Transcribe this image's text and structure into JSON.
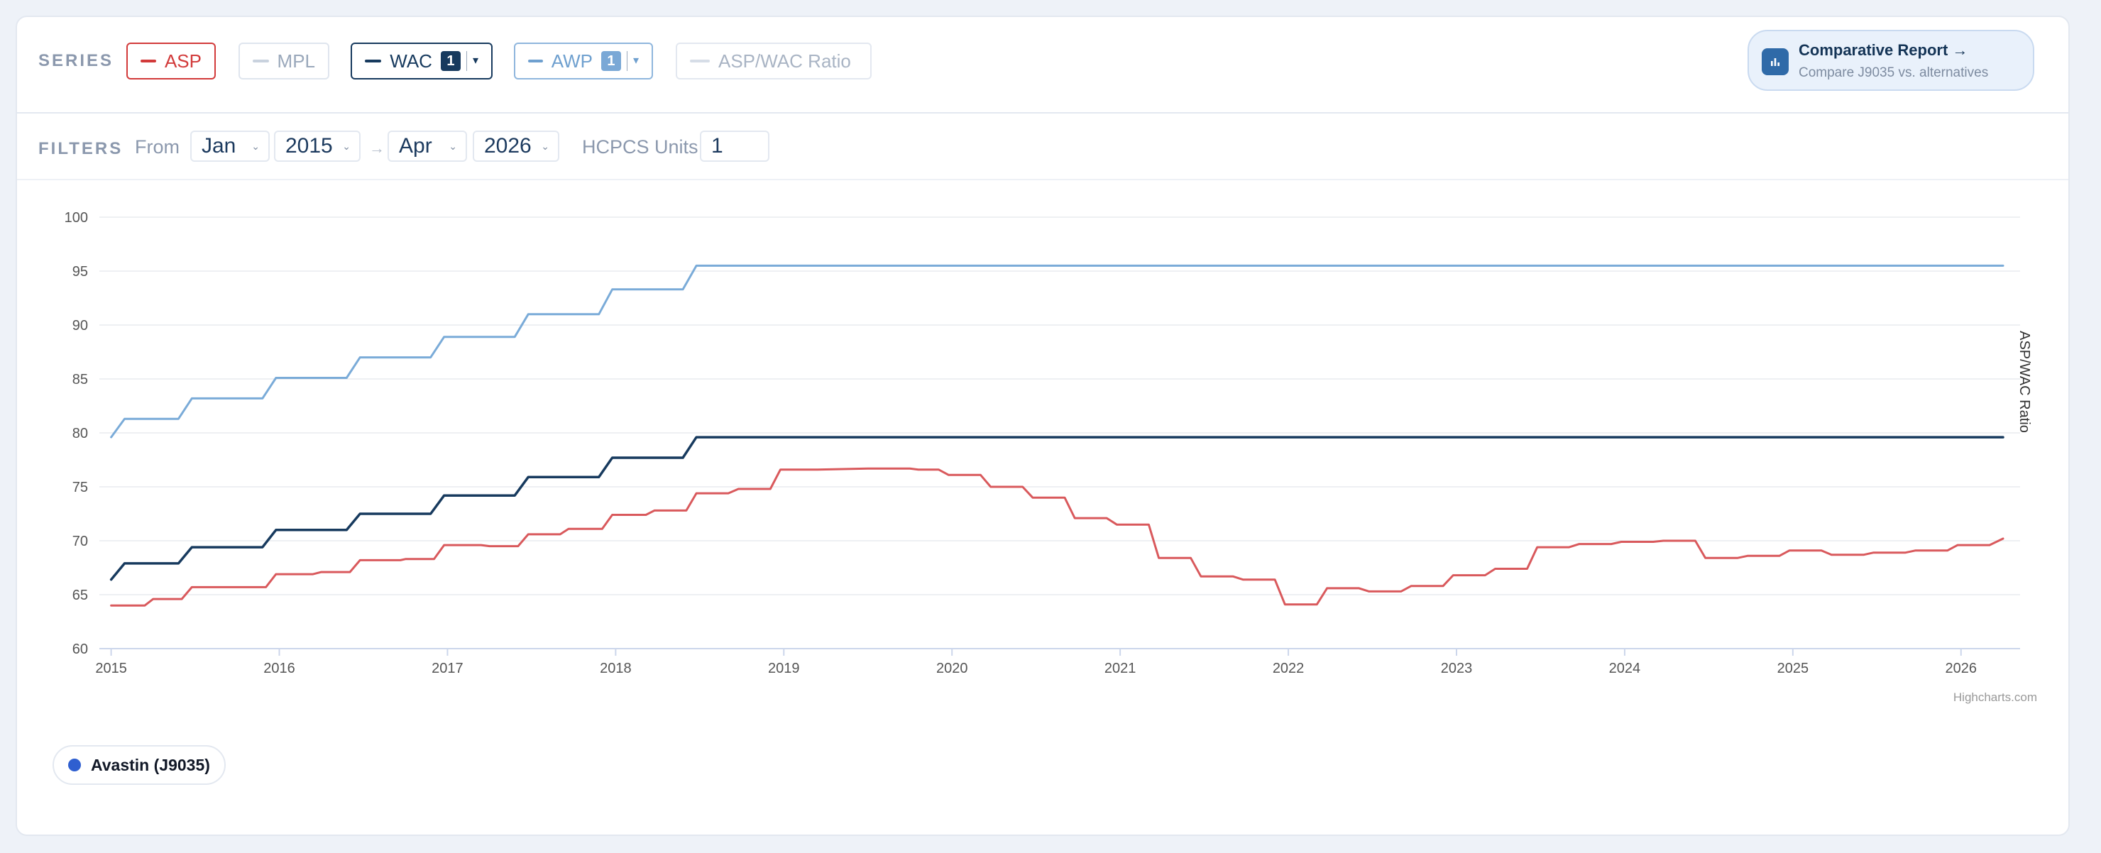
{
  "series": {
    "label": "SERIES",
    "items": [
      {
        "key": "asp",
        "label": "ASP",
        "active": true,
        "color": "#d23a3a",
        "border": "#d23a3a",
        "text": "#d23a3a"
      },
      {
        "key": "mpl",
        "label": "MPL",
        "active": false,
        "color": "#c9d2de",
        "border": "#dfe5ee",
        "text": "#9aa8bb"
      },
      {
        "key": "wac",
        "label": "WAC",
        "active": true,
        "color": "#173a5e",
        "border": "#173a5e",
        "text": "#173a5e",
        "badge": "1",
        "badge_bg": "#173a5e"
      },
      {
        "key": "awp",
        "label": "AWP",
        "active": true,
        "color": "#6fa0cf",
        "border": "#8fb6dd",
        "text": "#6fa0cf",
        "badge": "1",
        "badge_bg": "#7aa8d6"
      },
      {
        "key": "ratio",
        "label": "ASP/WAC Ratio",
        "active": false,
        "color": "#d6dde7",
        "border": "#e3e8f0",
        "text": "#a9b4c4"
      }
    ]
  },
  "report": {
    "title": "Comparative Report →",
    "subtitle": "Compare J9035 vs. alternatives"
  },
  "filters": {
    "label": "FILTERS",
    "from_label": "From",
    "from_month": "Jan",
    "from_year": "2015",
    "arrow": "→",
    "to_month": "Apr",
    "to_year": "2026",
    "units_label": "HCPCS Units",
    "units_value": "1"
  },
  "chart_data": {
    "type": "line",
    "ylim": [
      60,
      100
    ],
    "yticks": [
      60,
      65,
      70,
      75,
      80,
      85,
      90,
      95,
      100
    ],
    "xlim": [
      2014.93,
      2026.25
    ],
    "xticks": [
      "2015",
      "2016",
      "2017",
      "2018",
      "2019",
      "2020",
      "2021",
      "2022",
      "2023",
      "2024",
      "2025",
      "2026"
    ],
    "right_axis_label": "ASP/WAC Ratio",
    "credits": "Highcharts.com",
    "series": [
      {
        "name": "AWP",
        "color": "#7aabd8",
        "width": 3,
        "points": [
          [
            2015.0,
            79.6
          ],
          [
            2015.08,
            81.3
          ],
          [
            2015.4,
            81.3
          ],
          [
            2015.48,
            83.2
          ],
          [
            2015.9,
            83.2
          ],
          [
            2015.98,
            85.1
          ],
          [
            2016.4,
            85.1
          ],
          [
            2016.48,
            87.0
          ],
          [
            2016.9,
            87.0
          ],
          [
            2016.98,
            88.9
          ],
          [
            2017.4,
            88.9
          ],
          [
            2017.48,
            91.0
          ],
          [
            2017.9,
            91.0
          ],
          [
            2017.98,
            93.3
          ],
          [
            2018.4,
            93.3
          ],
          [
            2018.48,
            95.5
          ],
          [
            2026.25,
            95.5
          ]
        ]
      },
      {
        "name": "WAC",
        "color": "#173a5e",
        "width": 3.5,
        "points": [
          [
            2015.0,
            66.4
          ],
          [
            2015.08,
            67.9
          ],
          [
            2015.4,
            67.9
          ],
          [
            2015.48,
            69.4
          ],
          [
            2015.9,
            69.4
          ],
          [
            2015.98,
            71.0
          ],
          [
            2016.4,
            71.0
          ],
          [
            2016.48,
            72.5
          ],
          [
            2016.9,
            72.5
          ],
          [
            2016.98,
            74.2
          ],
          [
            2017.4,
            74.2
          ],
          [
            2017.48,
            75.9
          ],
          [
            2017.9,
            75.9
          ],
          [
            2017.98,
            77.7
          ],
          [
            2018.4,
            77.7
          ],
          [
            2018.48,
            79.6
          ],
          [
            2026.25,
            79.6
          ]
        ]
      },
      {
        "name": "ASP",
        "color": "#d9595c",
        "width": 3,
        "points": [
          [
            2015.0,
            64.0
          ],
          [
            2015.2,
            64.0
          ],
          [
            2015.25,
            64.6
          ],
          [
            2015.42,
            64.6
          ],
          [
            2015.48,
            65.7
          ],
          [
            2015.92,
            65.7
          ],
          [
            2015.98,
            66.9
          ],
          [
            2016.2,
            66.9
          ],
          [
            2016.25,
            67.1
          ],
          [
            2016.42,
            67.1
          ],
          [
            2016.48,
            68.2
          ],
          [
            2016.72,
            68.2
          ],
          [
            2016.75,
            68.3
          ],
          [
            2016.92,
            68.3
          ],
          [
            2016.98,
            69.6
          ],
          [
            2017.2,
            69.6
          ],
          [
            2017.25,
            69.5
          ],
          [
            2017.42,
            69.5
          ],
          [
            2017.48,
            70.6
          ],
          [
            2017.67,
            70.6
          ],
          [
            2017.72,
            71.1
          ],
          [
            2017.92,
            71.1
          ],
          [
            2017.98,
            72.4
          ],
          [
            2018.18,
            72.4
          ],
          [
            2018.23,
            72.8
          ],
          [
            2018.42,
            72.8
          ],
          [
            2018.48,
            74.4
          ],
          [
            2018.67,
            74.4
          ],
          [
            2018.73,
            74.8
          ],
          [
            2018.92,
            74.8
          ],
          [
            2018.98,
            76.6
          ],
          [
            2019.2,
            76.6
          ],
          [
            2019.5,
            76.7
          ],
          [
            2019.75,
            76.7
          ],
          [
            2019.8,
            76.6
          ],
          [
            2019.92,
            76.6
          ],
          [
            2019.98,
            76.1
          ],
          [
            2020.17,
            76.1
          ],
          [
            2020.23,
            75.0
          ],
          [
            2020.42,
            75.0
          ],
          [
            2020.48,
            74.0
          ],
          [
            2020.67,
            74.0
          ],
          [
            2020.73,
            72.1
          ],
          [
            2020.92,
            72.1
          ],
          [
            2020.98,
            71.5
          ],
          [
            2021.17,
            71.5
          ],
          [
            2021.23,
            68.4
          ],
          [
            2021.42,
            68.4
          ],
          [
            2021.48,
            66.7
          ],
          [
            2021.67,
            66.7
          ],
          [
            2021.73,
            66.4
          ],
          [
            2021.92,
            66.4
          ],
          [
            2021.98,
            64.1
          ],
          [
            2022.17,
            64.1
          ],
          [
            2022.23,
            65.6
          ],
          [
            2022.42,
            65.6
          ],
          [
            2022.48,
            65.3
          ],
          [
            2022.67,
            65.3
          ],
          [
            2022.73,
            65.8
          ],
          [
            2022.92,
            65.8
          ],
          [
            2022.98,
            66.8
          ],
          [
            2023.17,
            66.8
          ],
          [
            2023.23,
            67.4
          ],
          [
            2023.42,
            67.4
          ],
          [
            2023.48,
            69.4
          ],
          [
            2023.67,
            69.4
          ],
          [
            2023.73,
            69.7
          ],
          [
            2023.92,
            69.7
          ],
          [
            2023.98,
            69.9
          ],
          [
            2024.17,
            69.9
          ],
          [
            2024.23,
            70.0
          ],
          [
            2024.42,
            70.0
          ],
          [
            2024.48,
            68.4
          ],
          [
            2024.67,
            68.4
          ],
          [
            2024.73,
            68.6
          ],
          [
            2024.92,
            68.6
          ],
          [
            2024.98,
            69.1
          ],
          [
            2025.17,
            69.1
          ],
          [
            2025.23,
            68.7
          ],
          [
            2025.42,
            68.7
          ],
          [
            2025.48,
            68.9
          ],
          [
            2025.67,
            68.9
          ],
          [
            2025.73,
            69.1
          ],
          [
            2025.92,
            69.1
          ],
          [
            2025.98,
            69.6
          ],
          [
            2026.17,
            69.6
          ],
          [
            2026.25,
            70.2
          ]
        ]
      }
    ]
  },
  "legend": {
    "item": "Avastin (J9035)",
    "dot_color": "#2f5fd0"
  }
}
